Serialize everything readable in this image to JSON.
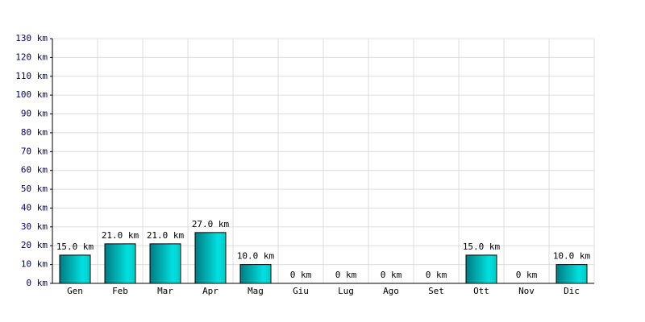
{
  "chart_data": {
    "type": "bar",
    "categories": [
      "Gen",
      "Feb",
      "Mar",
      "Apr",
      "Mag",
      "Giu",
      "Lug",
      "Ago",
      "Set",
      "Ott",
      "Nov",
      "Dic"
    ],
    "values": [
      15,
      21,
      21,
      27,
      10,
      0,
      0,
      0,
      0,
      15,
      0,
      10
    ],
    "value_labels": [
      "15.0 km",
      "21.0 km",
      "21.0 km",
      "27.0 km",
      "10.0 km",
      "0 km",
      "0 km",
      "0 km",
      "0 km",
      "15.0 km",
      "0 km",
      "10.0 km"
    ],
    "color": "#00e0e0",
    "ylim": [
      0,
      130
    ],
    "yticks": [
      {
        "value": 0,
        "label": "0 km"
      },
      {
        "value": 10,
        "label": "10 km"
      },
      {
        "value": 20,
        "label": "20 km"
      },
      {
        "value": 30,
        "label": "30 km"
      },
      {
        "value": 40,
        "label": "40 km"
      },
      {
        "value": 50,
        "label": "50 km"
      },
      {
        "value": 60,
        "label": "60 km"
      },
      {
        "value": 70,
        "label": "70 km"
      },
      {
        "value": 80,
        "label": "80 km"
      },
      {
        "value": 90,
        "label": "90 km"
      },
      {
        "value": 100,
        "label": "100 km"
      },
      {
        "value": 110,
        "label": "110 km"
      },
      {
        "value": 120,
        "label": "120 km"
      },
      {
        "value": 130,
        "label": "130 km"
      }
    ],
    "grid": true
  }
}
